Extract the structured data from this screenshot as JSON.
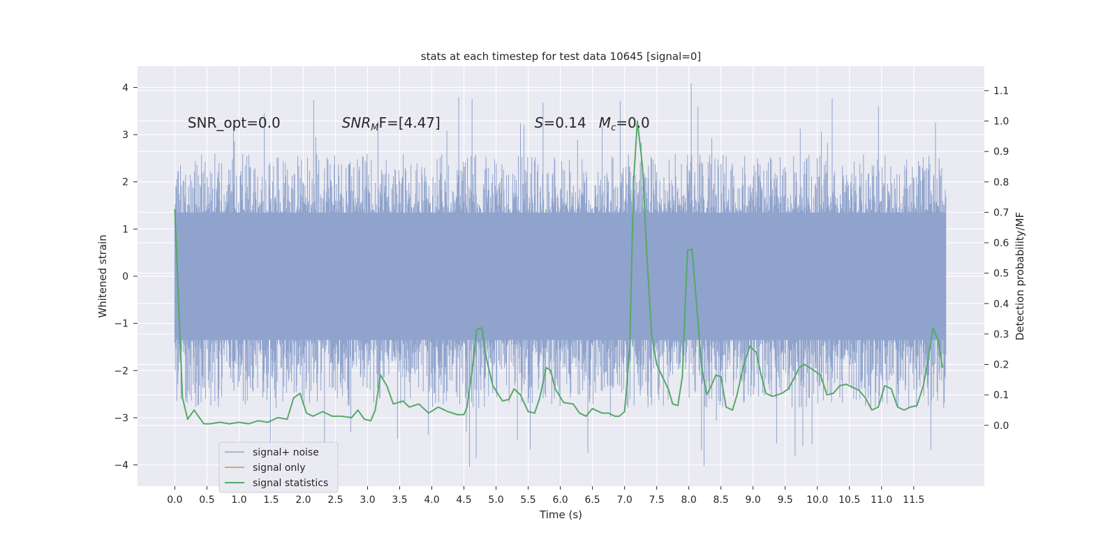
{
  "chart_data": {
    "type": "line",
    "title": "stats at each timestep for test data 10645 [signal=0]",
    "xlabel": "Time (s)",
    "ylabel": "Whitened strain",
    "ylabel_right": "Detection probability/MF",
    "xlim": [
      -0.58,
      12.6
    ],
    "ylim": [
      -4.45,
      4.45
    ],
    "ylim_right": [
      -0.2,
      1.18
    ],
    "x_ticks": [
      0.0,
      0.5,
      1.0,
      1.5,
      2.0,
      2.5,
      3.0,
      3.5,
      4.0,
      4.5,
      5.0,
      5.5,
      6.0,
      6.5,
      7.0,
      7.5,
      8.0,
      8.5,
      9.0,
      9.5,
      10.0,
      10.5,
      11.0,
      11.5
    ],
    "x_tick_labels": [
      "0.0",
      "0.5",
      "1.0",
      "1.5",
      "2.0",
      "2.5",
      "3.0",
      "3.5",
      "4.0",
      "4.5",
      "5.0",
      "5.5",
      "6.0",
      "6.5",
      "7.0",
      "7.5",
      "8.0",
      "8.5",
      "9.0",
      "9.5",
      "10.0",
      "10.5",
      "11.0",
      "11.5"
    ],
    "y_ticks": [
      -4,
      -3,
      -2,
      -1,
      0,
      1,
      2,
      3,
      4
    ],
    "y_tick_labels": [
      "−4",
      "−3",
      "−2",
      "−1",
      "0",
      "1",
      "2",
      "3",
      "4"
    ],
    "y_ticks_right": [
      0.0,
      0.1,
      0.2,
      0.3,
      0.4,
      0.5,
      0.6,
      0.7,
      0.8,
      0.9,
      1.0,
      1.1
    ],
    "y_tick_labels_right": [
      "0.0",
      "0.1",
      "0.2",
      "0.3",
      "0.4",
      "0.5",
      "0.6",
      "0.7",
      "0.8",
      "0.9",
      "1.0",
      "1.1"
    ],
    "grid": true,
    "legend_position": "bottom-left",
    "annotations": {
      "snr_opt": "SNR_opt=0.0",
      "snr_mf_base": "SNR",
      "snr_mf_sub": "M",
      "snr_mf_rest": "F=[4.47]",
      "s_base": "S",
      "s_rest": "=0.14",
      "mc_base": "M",
      "mc_sub": "c",
      "mc_rest": "=0.0"
    },
    "series": [
      {
        "name": "signal+ noise",
        "color": "#8fa3cc",
        "kind": "dense-noise",
        "x_range": [
          0.0,
          12.0
        ],
        "y_core_range": [
          -1.35,
          1.35
        ],
        "y_envelope": [
          -2.8,
          2.6
        ],
        "y_extremes": [
          -4.05,
          4.1
        ]
      },
      {
        "name": "signal only",
        "color": "#dd8452",
        "kind": "line",
        "values": []
      },
      {
        "name": "signal statistics",
        "color": "#55a868",
        "kind": "line",
        "axis": "right",
        "x": [
          0.0,
          0.05,
          0.12,
          0.2,
          0.3,
          0.4,
          0.45,
          0.55,
          0.7,
          0.85,
          1.0,
          1.15,
          1.3,
          1.45,
          1.6,
          1.75,
          1.85,
          1.95,
          2.05,
          2.15,
          2.3,
          2.45,
          2.6,
          2.75,
          2.85,
          2.95,
          3.05,
          3.12,
          3.2,
          3.3,
          3.4,
          3.55,
          3.65,
          3.8,
          3.95,
          4.1,
          4.25,
          4.4,
          4.5,
          4.55,
          4.62,
          4.7,
          4.78,
          4.85,
          4.95,
          5.1,
          5.2,
          5.28,
          5.38,
          5.5,
          5.6,
          5.68,
          5.78,
          5.85,
          5.92,
          6.05,
          6.2,
          6.3,
          6.4,
          6.5,
          6.65,
          6.75,
          6.85,
          6.92,
          7.0,
          7.08,
          7.14,
          7.2,
          7.28,
          7.35,
          7.42,
          7.5,
          7.6,
          7.68,
          7.75,
          7.83,
          7.9,
          7.98,
          8.05,
          8.12,
          8.2,
          8.28,
          8.35,
          8.42,
          8.5,
          8.58,
          8.68,
          8.75,
          8.85,
          8.95,
          9.05,
          9.12,
          9.2,
          9.3,
          9.45,
          9.55,
          9.65,
          9.72,
          9.8,
          9.88,
          9.95,
          10.05,
          10.15,
          10.25,
          10.35,
          10.45,
          10.55,
          10.65,
          10.75,
          10.85,
          10.95,
          11.05,
          11.15,
          11.25,
          11.35,
          11.45,
          11.55,
          11.65,
          11.72,
          11.8,
          11.88,
          11.95
        ],
        "values": [
          0.71,
          0.45,
          0.09,
          0.02,
          0.05,
          0.02,
          0.005,
          0.005,
          0.01,
          0.005,
          0.01,
          0.005,
          0.015,
          0.01,
          0.025,
          0.02,
          0.09,
          0.105,
          0.04,
          0.03,
          0.045,
          0.03,
          0.03,
          0.025,
          0.05,
          0.02,
          0.015,
          0.05,
          0.165,
          0.13,
          0.07,
          0.08,
          0.06,
          0.07,
          0.04,
          0.06,
          0.045,
          0.035,
          0.035,
          0.06,
          0.17,
          0.315,
          0.32,
          0.22,
          0.13,
          0.08,
          0.085,
          0.12,
          0.1,
          0.045,
          0.04,
          0.09,
          0.19,
          0.18,
          0.12,
          0.075,
          0.07,
          0.04,
          0.03,
          0.055,
          0.04,
          0.04,
          0.03,
          0.03,
          0.045,
          0.25,
          0.8,
          1.0,
          0.85,
          0.55,
          0.3,
          0.2,
          0.155,
          0.12,
          0.07,
          0.065,
          0.16,
          0.575,
          0.58,
          0.4,
          0.19,
          0.1,
          0.13,
          0.165,
          0.16,
          0.06,
          0.05,
          0.1,
          0.195,
          0.26,
          0.24,
          0.17,
          0.105,
          0.095,
          0.105,
          0.12,
          0.16,
          0.19,
          0.2,
          0.19,
          0.18,
          0.165,
          0.1,
          0.105,
          0.13,
          0.135,
          0.125,
          0.115,
          0.09,
          0.05,
          0.06,
          0.13,
          0.12,
          0.06,
          0.05,
          0.06,
          0.065,
          0.13,
          0.21,
          0.32,
          0.28,
          0.19
        ]
      }
    ]
  }
}
